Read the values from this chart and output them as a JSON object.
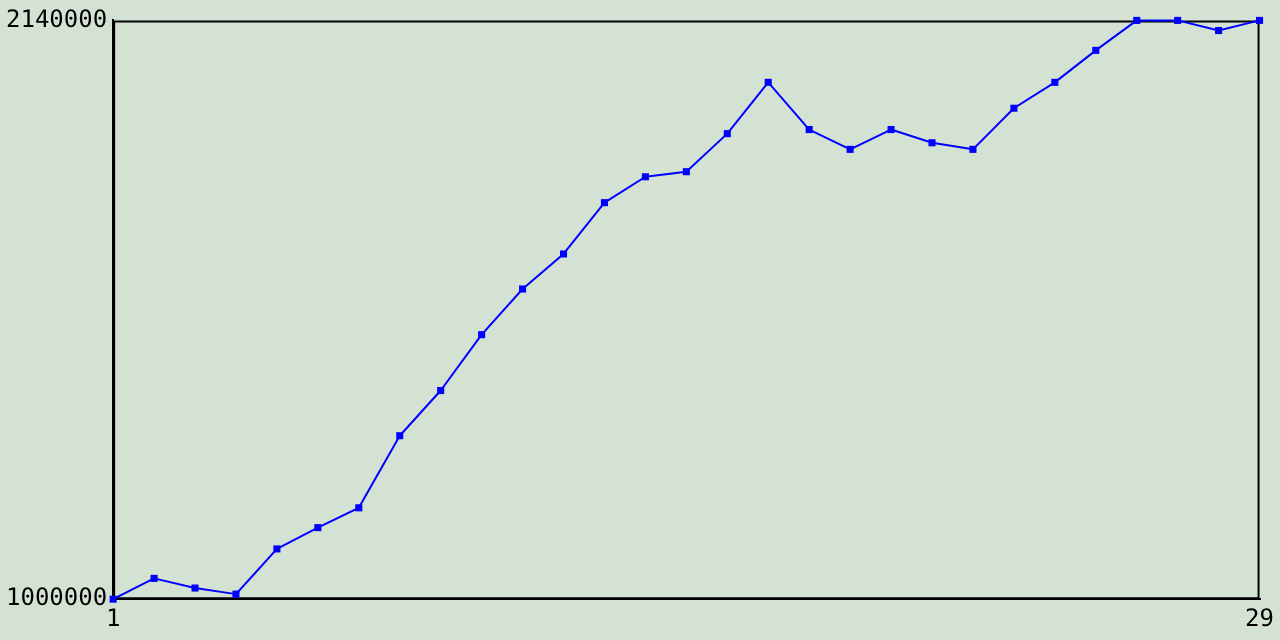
{
  "chart_data": {
    "type": "line",
    "x": [
      1,
      2,
      3,
      4,
      5,
      6,
      7,
      8,
      9,
      10,
      11,
      12,
      13,
      14,
      15,
      16,
      17,
      18,
      19,
      20,
      21,
      22,
      23,
      24,
      25,
      26,
      27,
      28,
      29
    ],
    "series": [
      {
        "color": "#0000ff",
        "values": [
          1000000,
          1041000,
          1022000,
          1010000,
          1099000,
          1141000,
          1180000,
          1322000,
          1411000,
          1521000,
          1611000,
          1680000,
          1781000,
          1832000,
          1842000,
          1917000,
          2018000,
          1925000,
          1886000,
          1925000,
          1899000,
          1886000,
          1967000,
          2018000,
          2081000,
          2140000,
          2140000,
          2120000,
          2140000
        ]
      }
    ],
    "xlim": [
      1,
      29
    ],
    "xticks": [
      1,
      29
    ],
    "ylim": [
      1000000,
      2140000
    ],
    "yticks": [
      1000000,
      2140000
    ],
    "grid": false,
    "legend": false,
    "marker": "square",
    "line_style": "solid"
  }
}
